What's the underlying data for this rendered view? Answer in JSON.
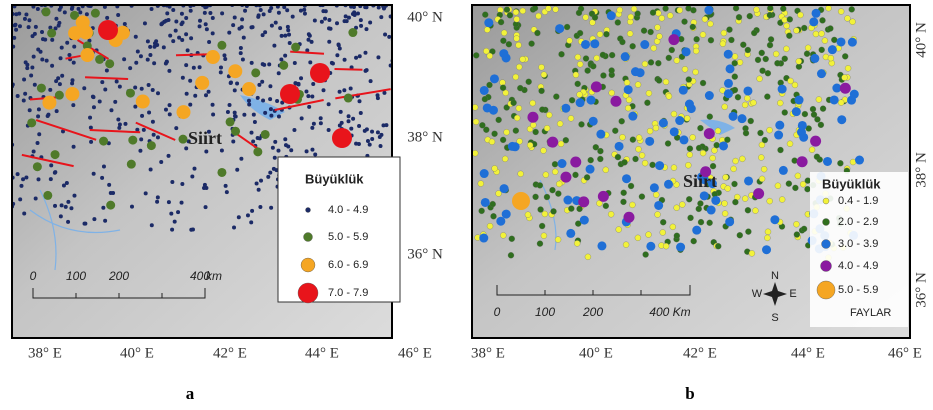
{
  "panels": [
    {
      "label": "a",
      "city": "Siirt",
      "lat_labels": [
        "40° N",
        "38° N",
        "36° N"
      ],
      "lon_labels": [
        "38° E",
        "40° E",
        "42° E",
        "44° E",
        "46° E"
      ],
      "scale": {
        "ticks": [
          "0",
          "100",
          "200",
          "400"
        ],
        "unit": "km"
      },
      "legend": {
        "title": "Büyüklük",
        "items": [
          {
            "label": "4.0 - 4.9",
            "color": "#1b2a66"
          },
          {
            "label": "5.0 - 5.9",
            "color": "#4f7a2a"
          },
          {
            "label": "6.0 - 6.9",
            "color": "#f5a623"
          },
          {
            "label": "7.0 - 7.9",
            "color": "#e8141b"
          }
        ]
      }
    },
    {
      "label": "b",
      "city": "Siirt",
      "lat_labels": [
        "40° N",
        "38° N",
        "36° N"
      ],
      "lon_labels": [
        "38° E",
        "40° E",
        "42° E",
        "44° E",
        "46° E"
      ],
      "scale": {
        "ticks": [
          "0",
          "100",
          "200",
          "400 Km"
        ]
      },
      "compass": [
        "N",
        "W",
        "E",
        "S"
      ],
      "faults": "FAYLAR",
      "legend": {
        "title": "Büyüklük",
        "items": [
          {
            "label": "0.4 - 1.9",
            "color": "#f2f23a"
          },
          {
            "label": "2.0 - 2.9",
            "color": "#2f6e1e"
          },
          {
            "label": "3.0 - 3.9",
            "color": "#1f6fd6"
          },
          {
            "label": "4.0 - 4.9",
            "color": "#8a1aa0"
          },
          {
            "label": "5.0 - 5.9",
            "color": "#f5a623"
          }
        ]
      }
    }
  ]
}
